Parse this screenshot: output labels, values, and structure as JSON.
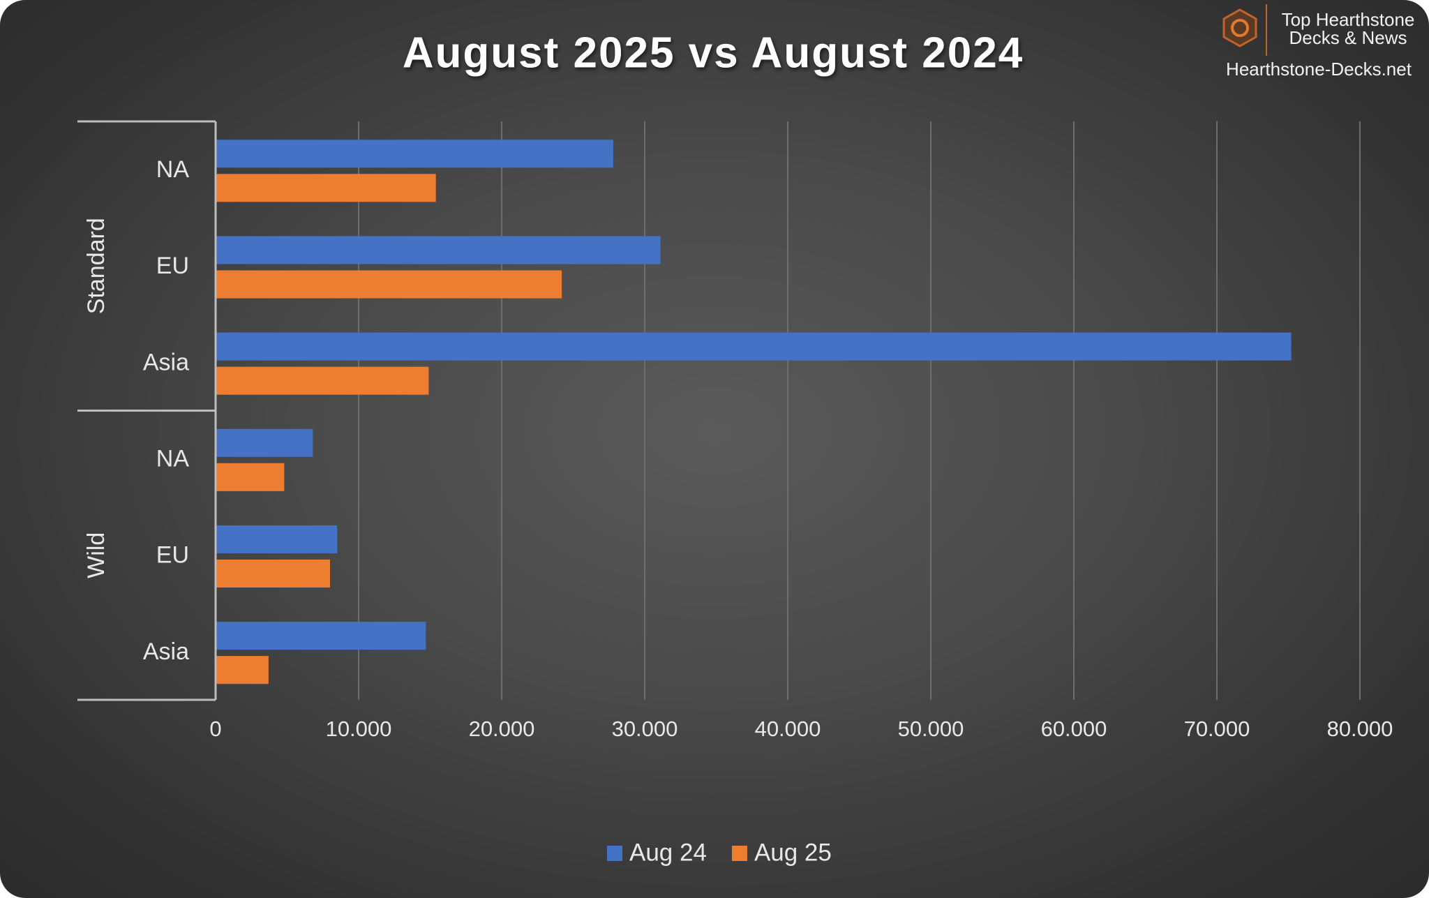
{
  "chart_data": {
    "type": "bar",
    "orientation": "horizontal",
    "title": "August 2025 vs August 2024",
    "groups": [
      {
        "name": "Standard",
        "categories": [
          "NA",
          "EU",
          "Asia"
        ]
      },
      {
        "name": "Wild",
        "categories": [
          "NA",
          "EU",
          "Asia"
        ]
      }
    ],
    "series": [
      {
        "name": "Aug 24",
        "color": "#4472c4",
        "values": [
          27800,
          31100,
          75200,
          6800,
          8500,
          14700
        ]
      },
      {
        "name": "Aug 25",
        "color": "#ed7d31",
        "values": [
          15400,
          24200,
          14900,
          4800,
          8000,
          3700
        ]
      }
    ],
    "xlim": [
      0,
      80000
    ],
    "xticks": [
      0,
      {
        "value": 10000,
        "label": "10.000"
      },
      {
        "value": 20000,
        "label": "20.000"
      },
      {
        "value": 30000,
        "label": "30.000"
      },
      {
        "value": 40000,
        "label": "40.000"
      },
      {
        "value": 50000,
        "label": "50.000"
      },
      {
        "value": 60000,
        "label": "60.000"
      },
      {
        "value": 70000,
        "label": "70.000"
      },
      {
        "value": 80000,
        "label": "80.000"
      }
    ],
    "grid": true,
    "legend": "bottom"
  },
  "logo": {
    "line1": "Top Hearthstone",
    "line2": "Decks & News",
    "site": "Hearthstone-Decks.net"
  }
}
